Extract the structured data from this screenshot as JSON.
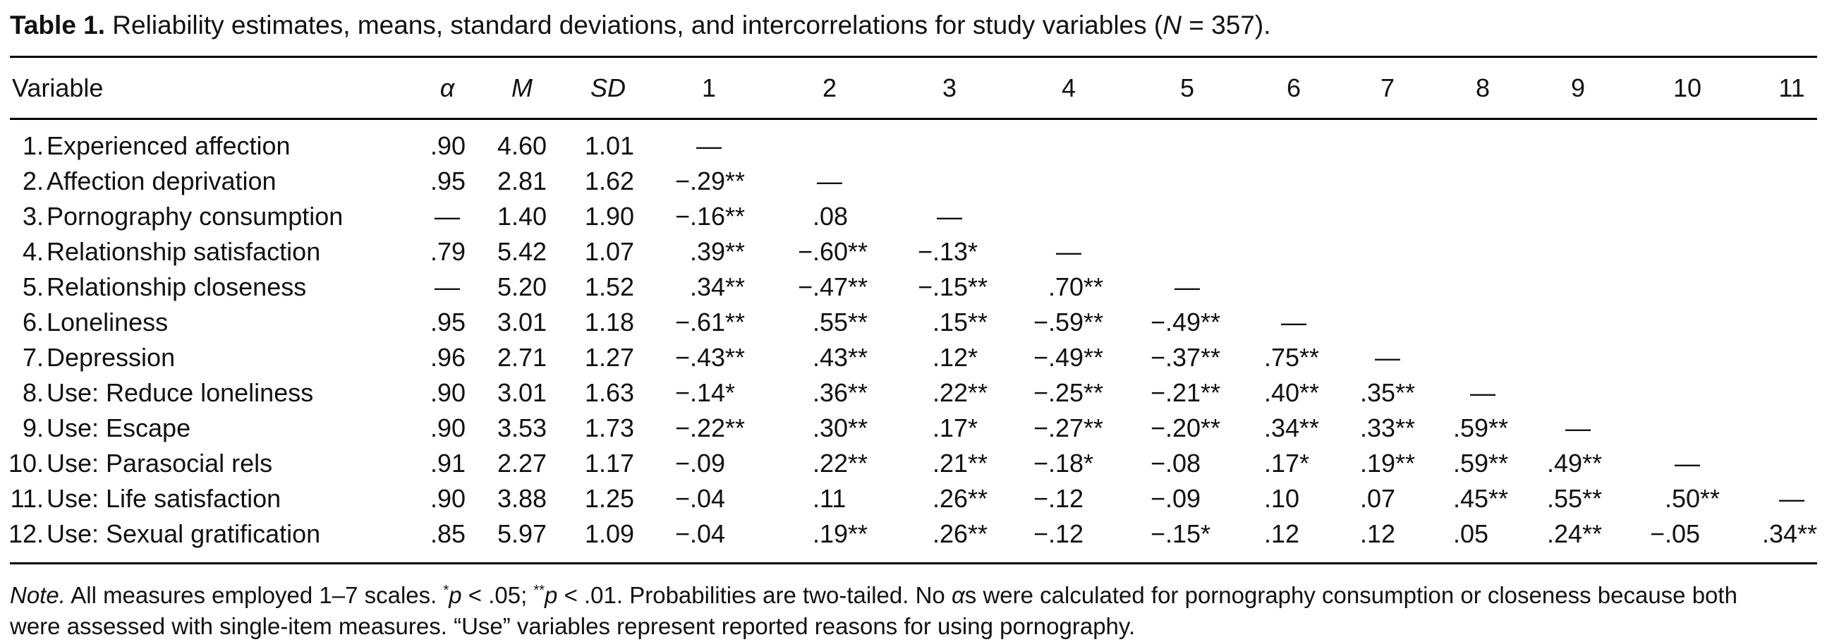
{
  "title": {
    "label": "Table 1.",
    "text_before": " Reliability estimates, means, standard deviations, and intercorrelations for study variables (",
    "n_symbol": "N",
    "text_after": " = 357)."
  },
  "header": {
    "variable": "Variable",
    "alpha": "α",
    "mean": "M",
    "sd": "SD",
    "columns": [
      "1",
      "2",
      "3",
      "4",
      "5",
      "6",
      "7",
      "8",
      "9",
      "10",
      "11"
    ]
  },
  "rows": [
    {
      "num": "1.",
      "label": "Experienced affection",
      "alpha": ".90",
      "m": "4.60",
      "sd": "1.01",
      "r": [
        "—"
      ]
    },
    {
      "num": "2.",
      "label": "Affection deprivation",
      "alpha": ".95",
      "m": "2.81",
      "sd": "1.62",
      "r": [
        "−.29**",
        "—"
      ]
    },
    {
      "num": "3.",
      "label": "Pornography consumption",
      "alpha": "—",
      "m": "1.40",
      "sd": "1.90",
      "r": [
        "−.16**",
        ".08",
        "—"
      ]
    },
    {
      "num": "4.",
      "label": "Relationship satisfaction",
      "alpha": ".79",
      "m": "5.42",
      "sd": "1.07",
      "r": [
        ".39**",
        "−.60**",
        "−.13*",
        "—"
      ]
    },
    {
      "num": "5.",
      "label": "Relationship closeness",
      "alpha": "—",
      "m": "5.20",
      "sd": "1.52",
      "r": [
        ".34**",
        "−.47**",
        "−.15**",
        ".70**",
        "—"
      ]
    },
    {
      "num": "6.",
      "label": "Loneliness",
      "alpha": ".95",
      "m": "3.01",
      "sd": "1.18",
      "r": [
        "−.61**",
        ".55**",
        ".15**",
        "−.59**",
        "−.49**",
        "—"
      ]
    },
    {
      "num": "7.",
      "label": "Depression",
      "alpha": ".96",
      "m": "2.71",
      "sd": "1.27",
      "r": [
        "−.43**",
        ".43**",
        ".12*",
        "−.49**",
        "−.37**",
        ".75**",
        "—"
      ]
    },
    {
      "num": "8.",
      "label": "Use: Reduce loneliness",
      "alpha": ".90",
      "m": "3.01",
      "sd": "1.63",
      "r": [
        "−.14*",
        ".36**",
        ".22**",
        "−.25**",
        "−.21**",
        ".40**",
        ".35**",
        "—"
      ]
    },
    {
      "num": "9.",
      "label": "Use: Escape",
      "alpha": ".90",
      "m": "3.53",
      "sd": "1.73",
      "r": [
        "−.22**",
        ".30**",
        ".17*",
        "−.27**",
        "−.20**",
        ".34**",
        ".33**",
        ".59**",
        "—"
      ]
    },
    {
      "num": "10.",
      "label": "Use: Parasocial rels",
      "alpha": ".91",
      "m": "2.27",
      "sd": "1.17",
      "r": [
        "−.09",
        ".22**",
        ".21**",
        "−.18*",
        "−.08",
        ".17*",
        ".19**",
        ".59**",
        ".49**",
        "—"
      ]
    },
    {
      "num": "11.",
      "label": "Use: Life satisfaction",
      "alpha": ".90",
      "m": "3.88",
      "sd": "1.25",
      "r": [
        "−.04",
        ".11",
        ".26**",
        "−.12",
        "−.09",
        ".10",
        ".07",
        ".45**",
        ".55**",
        ".50**",
        "—"
      ]
    },
    {
      "num": "12.",
      "label": "Use: Sexual gratification",
      "alpha": ".85",
      "m": "5.97",
      "sd": "1.09",
      "r": [
        "−.04",
        ".19**",
        ".26**",
        "−.12",
        "−.15*",
        ".12",
        ".12",
        ".05",
        ".24**",
        "−.05",
        ".34**"
      ]
    }
  ],
  "note": {
    "segments": [
      {
        "t": "Note.",
        "style": "i"
      },
      {
        "t": " All measures employed 1–7 scales. "
      },
      {
        "t": "*",
        "style": "sup"
      },
      {
        "t": "p",
        "style": "i"
      },
      {
        "t": " < .05; "
      },
      {
        "t": "**",
        "style": "sup"
      },
      {
        "t": "p",
        "style": "i"
      },
      {
        "t": " < .01. Probabilities are two-tailed. No "
      },
      {
        "t": "α",
        "style": "i"
      },
      {
        "t": "s were calculated for pornography consumption or closeness because both"
      },
      {
        "t": "",
        "style": "br"
      },
      {
        "t": "were assessed with single-item measures. “Use” variables represent reported reasons for using pornography."
      }
    ]
  }
}
